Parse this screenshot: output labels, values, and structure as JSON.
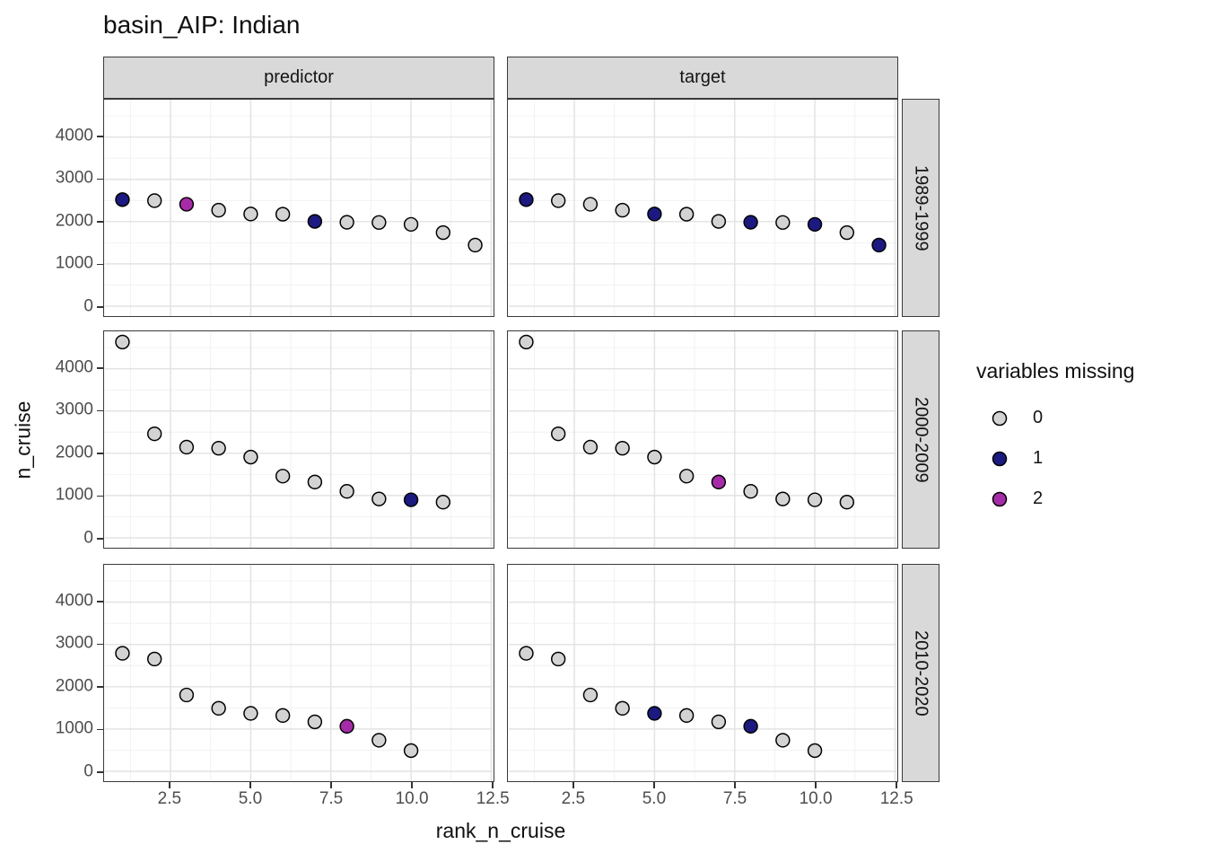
{
  "title": "basin_AIP: Indian",
  "facets": {
    "cols": [
      "predictor",
      "target"
    ],
    "rows": [
      "1989-1999",
      "2000-2009",
      "2010-2020"
    ]
  },
  "axes": {
    "x": {
      "label": "rank_n_cruise",
      "tick_labels": [
        "2.5",
        "5.0",
        "7.5",
        "10.0",
        "12.5"
      ]
    },
    "y": {
      "label": "n_cruise",
      "tick_labels": [
        "0",
        "1000",
        "2000",
        "3000",
        "4000"
      ]
    }
  },
  "legend": {
    "title": "variables missing",
    "entries": [
      {
        "label": "0",
        "value": 0,
        "color": "#d3d3d3"
      },
      {
        "label": "1",
        "value": 1,
        "color": "#1c1a80"
      },
      {
        "label": "2",
        "value": 2,
        "color": "#a62ba8"
      }
    ]
  },
  "colors": {
    "point_outline": "#000000",
    "strip_background": "#d9d9d9",
    "panel_border": "#3a3a3a",
    "grid_major": "#e3e3e3",
    "grid_minor": "#f0f0f0",
    "tick_text": "#4d4d4d"
  },
  "chart_data": {
    "type": "scatter",
    "title": "basin_AIP: Indian",
    "xlabel": "rank_n_cruise",
    "ylabel": "n_cruise",
    "facet_cols": [
      "predictor",
      "target"
    ],
    "facet_rows": [
      "1989-1999",
      "2000-2009",
      "2010-2020"
    ],
    "x_ticks": [
      2.5,
      5.0,
      7.5,
      10.0,
      12.5
    ],
    "y_ticks": [
      0,
      1000,
      2000,
      3000,
      4000
    ],
    "x_domain": [
      0.45,
      12.55
    ],
    "y_domain": [
      -233,
      4883
    ],
    "grid": {
      "x_major": [
        2.5,
        5.0,
        7.5,
        10.0,
        12.5
      ],
      "x_minor": [
        1.25,
        3.75,
        6.25,
        8.75,
        11.25
      ],
      "y_major": [
        0,
        1000,
        2000,
        3000,
        4000
      ],
      "y_minor": [
        500,
        1500,
        2500,
        3500,
        4500
      ]
    },
    "legend_title": "variables missing",
    "legend_position": "right",
    "rows": [
      {
        "period": "1989-1999",
        "ranks": [
          1,
          2,
          3,
          4,
          5,
          6,
          7,
          8,
          9,
          10,
          11,
          12
        ],
        "n_cruise": [
          2520,
          2495,
          2410,
          2270,
          2180,
          2175,
          2005,
          1985,
          1980,
          1935,
          1740,
          1445
        ],
        "missing": {
          "predictor": [
            1,
            0,
            2,
            0,
            0,
            0,
            1,
            0,
            0,
            0,
            0,
            0
          ],
          "target": [
            1,
            0,
            0,
            0,
            1,
            0,
            0,
            1,
            0,
            1,
            0,
            1
          ]
        }
      },
      {
        "period": "2000-2009",
        "ranks": [
          1,
          2,
          3,
          4,
          5,
          6,
          7,
          8,
          9,
          10,
          11
        ],
        "n_cruise": [
          4630,
          2460,
          2145,
          2120,
          1910,
          1460,
          1320,
          1100,
          920,
          900,
          845
        ],
        "missing": {
          "predictor": [
            0,
            0,
            0,
            0,
            0,
            0,
            0,
            0,
            0,
            1,
            0
          ],
          "target": [
            0,
            0,
            0,
            0,
            0,
            0,
            2,
            0,
            0,
            0,
            0
          ]
        }
      },
      {
        "period": "2010-2020",
        "ranks": [
          1,
          2,
          3,
          4,
          5,
          6,
          7,
          8,
          9,
          10
        ],
        "n_cruise": [
          2790,
          2655,
          1805,
          1490,
          1370,
          1320,
          1170,
          1065,
          735,
          490
        ],
        "missing": {
          "predictor": [
            0,
            0,
            0,
            0,
            0,
            0,
            0,
            2,
            0,
            0
          ],
          "target": [
            0,
            0,
            0,
            0,
            1,
            0,
            0,
            1,
            0,
            0
          ]
        }
      }
    ]
  }
}
